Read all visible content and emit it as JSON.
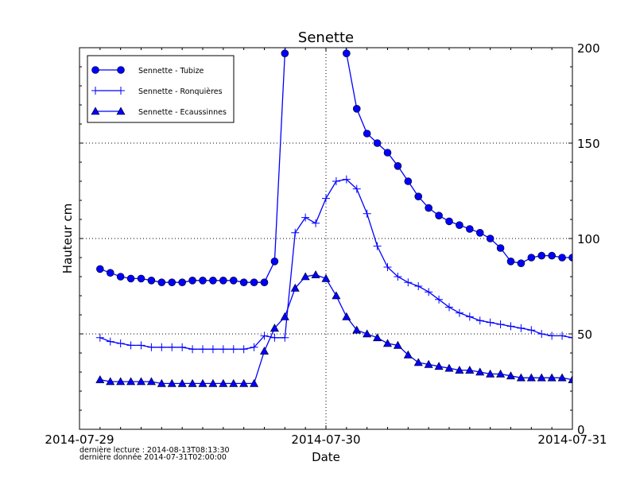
{
  "chart_data": {
    "type": "line",
    "title": "Senette",
    "xlabel": "Date",
    "ylabel": "Hauteur cm",
    "ylim": [
      0,
      200
    ],
    "xlim": [
      "2014-07-29 00:00",
      "2014-07-31 00:00"
    ],
    "x_ticks": [
      "2014-07-29",
      "2014-07-30",
      "2014-07-31"
    ],
    "y_ticks": [
      0,
      50,
      100,
      150,
      200
    ],
    "y_axis_side": "right",
    "grid": true,
    "legend": "top-left",
    "color": "#0000ff",
    "x": [
      "2014-07-29 02:00",
      "2014-07-29 03:00",
      "2014-07-29 04:00",
      "2014-07-29 05:00",
      "2014-07-29 06:00",
      "2014-07-29 07:00",
      "2014-07-29 08:00",
      "2014-07-29 09:00",
      "2014-07-29 10:00",
      "2014-07-29 11:00",
      "2014-07-29 12:00",
      "2014-07-29 13:00",
      "2014-07-29 14:00",
      "2014-07-29 15:00",
      "2014-07-29 16:00",
      "2014-07-29 17:00",
      "2014-07-29 18:00",
      "2014-07-29 19:00",
      "2014-07-29 20:00",
      "2014-07-29 21:00",
      "2014-07-29 22:00",
      "2014-07-29 23:00",
      "2014-07-30 00:00",
      "2014-07-30 01:00",
      "2014-07-30 02:00",
      "2014-07-30 03:00",
      "2014-07-30 04:00",
      "2014-07-30 05:00",
      "2014-07-30 06:00",
      "2014-07-30 07:00",
      "2014-07-30 08:00",
      "2014-07-30 09:00",
      "2014-07-30 10:00",
      "2014-07-30 11:00",
      "2014-07-30 12:00",
      "2014-07-30 13:00",
      "2014-07-30 14:00",
      "2014-07-30 15:00",
      "2014-07-30 16:00",
      "2014-07-30 17:00",
      "2014-07-30 18:00",
      "2014-07-30 19:00",
      "2014-07-30 20:00",
      "2014-07-30 21:00",
      "2014-07-30 22:00",
      "2014-07-30 23:00",
      "2014-07-31 00:00"
    ],
    "series": [
      {
        "name": "Sennette - Tubize",
        "marker": "circle",
        "values": [
          84,
          82,
          80,
          79,
          79,
          78,
          77,
          77,
          77,
          78,
          78,
          78,
          78,
          78,
          77,
          77,
          77,
          88,
          197,
          null,
          null,
          null,
          null,
          null,
          197,
          168,
          155,
          150,
          145,
          138,
          130,
          122,
          116,
          112,
          109,
          107,
          105,
          103,
          100,
          95,
          88,
          87,
          90,
          91,
          91,
          90,
          90
        ]
      },
      {
        "name": "Sennette - Ronquières",
        "marker": "plus",
        "values": [
          48,
          46,
          45,
          44,
          44,
          43,
          43,
          43,
          43,
          42,
          42,
          42,
          42,
          42,
          42,
          43,
          49,
          48,
          48,
          103,
          111,
          108,
          121,
          130,
          131,
          126,
          113,
          96,
          85,
          80,
          77,
          75,
          72,
          68,
          64,
          61,
          59,
          57,
          56,
          55,
          54,
          53,
          52,
          50,
          49,
          49,
          48
        ]
      },
      {
        "name": "Sennette - Ecaussinnes",
        "marker": "triangle",
        "values": [
          26,
          25,
          25,
          25,
          25,
          25,
          24,
          24,
          24,
          24,
          24,
          24,
          24,
          24,
          24,
          24,
          41,
          53,
          59,
          74,
          80,
          81,
          79,
          70,
          59,
          52,
          50,
          48,
          45,
          44,
          39,
          35,
          34,
          33,
          32,
          31,
          31,
          30,
          29,
          29,
          28,
          27,
          27,
          27,
          27,
          27,
          26
        ]
      }
    ]
  },
  "footer": {
    "last_read": "dernière lecture : 2014-08-13T08:13:30",
    "last_data": "dernière donnée  2014-07-31T02:00:00"
  }
}
